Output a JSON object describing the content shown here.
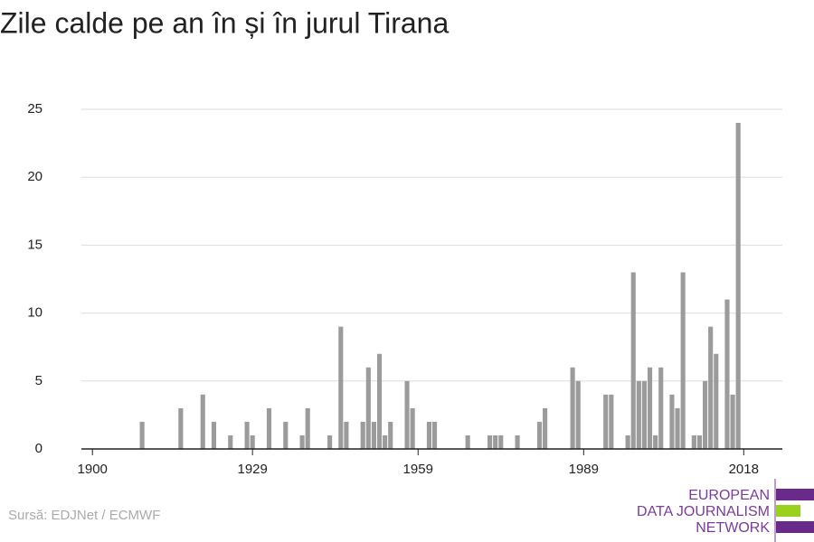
{
  "chart_data": {
    "type": "bar",
    "title": "Zile calde pe an în și în jurul Tirana",
    "source": "Sursă: EDJNet / ECMWF",
    "logo": [
      "EUROPEAN",
      "DATA JOURNALISM",
      "NETWORK"
    ],
    "x": [
      1909,
      1916,
      1920,
      1922,
      1925,
      1928,
      1929,
      1932,
      1935,
      1938,
      1939,
      1943,
      1945,
      1946,
      1949,
      1950,
      1951,
      1952,
      1953,
      1954,
      1957,
      1958,
      1961,
      1962,
      1968,
      1972,
      1973,
      1974,
      1977,
      1981,
      1982,
      1987,
      1988,
      1993,
      1994,
      1997,
      1998,
      1999,
      2000,
      2001,
      2002,
      2003,
      2005,
      2006,
      2007,
      2009,
      2010,
      2011,
      2012,
      2013,
      2015,
      2016,
      2017
    ],
    "values": [
      2,
      3,
      4,
      2,
      1,
      2,
      1,
      3,
      2,
      1,
      3,
      1,
      9,
      2,
      2,
      6,
      2,
      7,
      1,
      2,
      5,
      3,
      2,
      2,
      1,
      1,
      1,
      1,
      1,
      2,
      3,
      6,
      5,
      4,
      4,
      1,
      13,
      5,
      5,
      6,
      1,
      6,
      4,
      3,
      13,
      1,
      1,
      5,
      9,
      7,
      11,
      4,
      24
    ],
    "color": "#9b9b9b",
    "xlim": [
      1898,
      2025
    ],
    "xticks": [
      1900,
      1929,
      1959,
      1989,
      2018
    ],
    "ylim": [
      0,
      25
    ],
    "yticks": [
      0,
      5,
      10,
      15,
      20,
      25
    ],
    "grid": true
  }
}
